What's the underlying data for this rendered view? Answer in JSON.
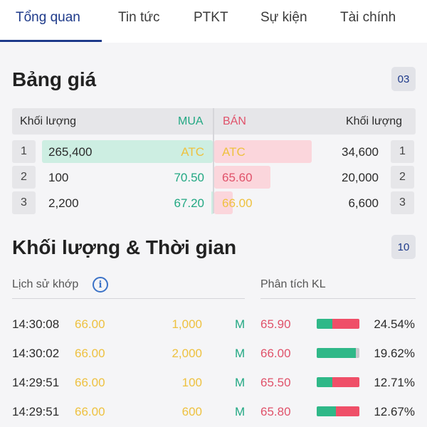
{
  "tabs": [
    "Tổng quan",
    "Tin tức",
    "PTKT",
    "Sự kiện",
    "Tài chính"
  ],
  "order_book": {
    "title": "Bảng giá",
    "badge": "03",
    "header": {
      "buy_volume": "Khối lượng",
      "buy": "MUA",
      "sell": "BÁN",
      "sell_volume": "Khối lượng"
    },
    "rows": [
      {
        "index": "1",
        "buy_volume": "265,400",
        "buy_price": "ATC",
        "sell_price": "ATC",
        "sell_volume": "34,600",
        "sell_index": "1",
        "buy_fill": 1.0,
        "sell_fill": 1.0
      },
      {
        "index": "2",
        "buy_volume": "100",
        "buy_price": "70.50",
        "sell_price": "65.60",
        "sell_volume": "20,000",
        "sell_index": "2",
        "buy_fill": 0.0,
        "sell_fill": 0.58
      },
      {
        "index": "3",
        "buy_volume": "2,200",
        "buy_price": "67.20",
        "sell_price": "66.00",
        "sell_volume": "6,600",
        "sell_index": "3",
        "buy_fill": 0.01,
        "sell_fill": 0.19
      }
    ]
  },
  "time_sales": {
    "title": "Khối lượng & Thời gian",
    "badge": "10",
    "history_label": "Lịch sử khớp",
    "analysis_label": "Phân tích KL",
    "trades": [
      {
        "time": "14:30:08",
        "price": "66.00",
        "volume": "1,000",
        "side": "M"
      },
      {
        "time": "14:30:02",
        "price": "66.00",
        "volume": "2,000",
        "side": "M"
      },
      {
        "time": "14:29:51",
        "price": "66.00",
        "volume": "100",
        "side": "M"
      },
      {
        "time": "14:29:51",
        "price": "66.00",
        "volume": "600",
        "side": "M"
      }
    ],
    "analysis": [
      {
        "price": "65.90",
        "percent": "24.54%",
        "buy_share": 0.37,
        "sell_share": 0.63,
        "other_share": 0.0
      },
      {
        "price": "66.00",
        "percent": "19.62%",
        "buy_share": 0.92,
        "sell_share": 0.0,
        "other_share": 0.08
      },
      {
        "price": "65.50",
        "percent": "12.71%",
        "buy_share": 0.36,
        "sell_share": 0.64,
        "other_share": 0.0
      },
      {
        "price": "65.80",
        "percent": "12.67%",
        "buy_share": 0.45,
        "sell_share": 0.55,
        "other_share": 0.0
      }
    ]
  },
  "colors": {
    "accent": "#1e3a8a",
    "buy": "#22a883",
    "sell": "#e0526a",
    "reference": "#eec13f"
  }
}
